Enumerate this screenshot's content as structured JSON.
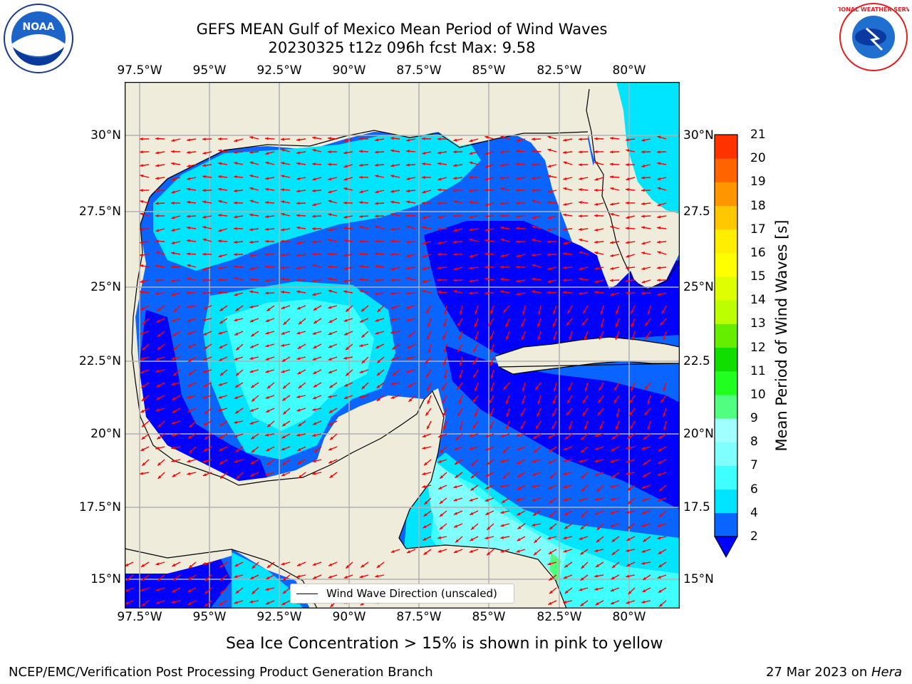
{
  "title": {
    "line1": "GEFS MEAN Gulf of Mexico Mean Period of Wind Waves",
    "line2": "20230325 t12z 096h fcst   Max: 9.58"
  },
  "logos": {
    "left": "NOAA",
    "right": "NATIONAL WEATHER SERVICE"
  },
  "map": {
    "region": "Gulf of Mexico",
    "lon_ticks": [
      "97.5°W",
      "95°W",
      "92.5°W",
      "90°W",
      "87.5°W",
      "85°W",
      "82.5°W",
      "80°W"
    ],
    "lat_ticks": [
      "30°N",
      "27.5°N",
      "25°N",
      "22.5°N",
      "20°N",
      "17.5°N",
      "15°N"
    ],
    "lat_ticks_right": [
      "30°N",
      "27.5",
      "25°N",
      "22.5",
      "20°N",
      "17.5",
      "15°N"
    ],
    "land_color": "#efecdc",
    "grid_color": "#b0b0b0",
    "arrow_color": "#ff0000"
  },
  "legend": {
    "label": "Wind Wave Direction (unscaled)"
  },
  "colorbar": {
    "label": "Mean Period of Wind Waves [s]",
    "ticks": [
      "2",
      "4",
      "6",
      "7",
      "8",
      "9",
      "10",
      "11",
      "12",
      "13",
      "14",
      "15",
      "16",
      "17",
      "18",
      "19",
      "20",
      "21"
    ],
    "colors": [
      "#0a64ff",
      "#00e5ff",
      "#40ffff",
      "#80ffff",
      "#a0ffff",
      "#50ff80",
      "#20ff20",
      "#10dd00",
      "#66ee00",
      "#bbff00",
      "#ddff00",
      "#ffff00",
      "#ffee00",
      "#ffc800",
      "#ff9600",
      "#ff6400",
      "#ff3200",
      "#ff0000"
    ],
    "under_color": "#0000ff"
  },
  "note": "Sea Ice Concentration > 15% is shown in pink to yellow",
  "footer": {
    "left": "NCEP/EMC/Verification Post Processing Product Generation Branch",
    "right_date": "27 Mar 2023 on ",
    "right_host": "Hera"
  }
}
